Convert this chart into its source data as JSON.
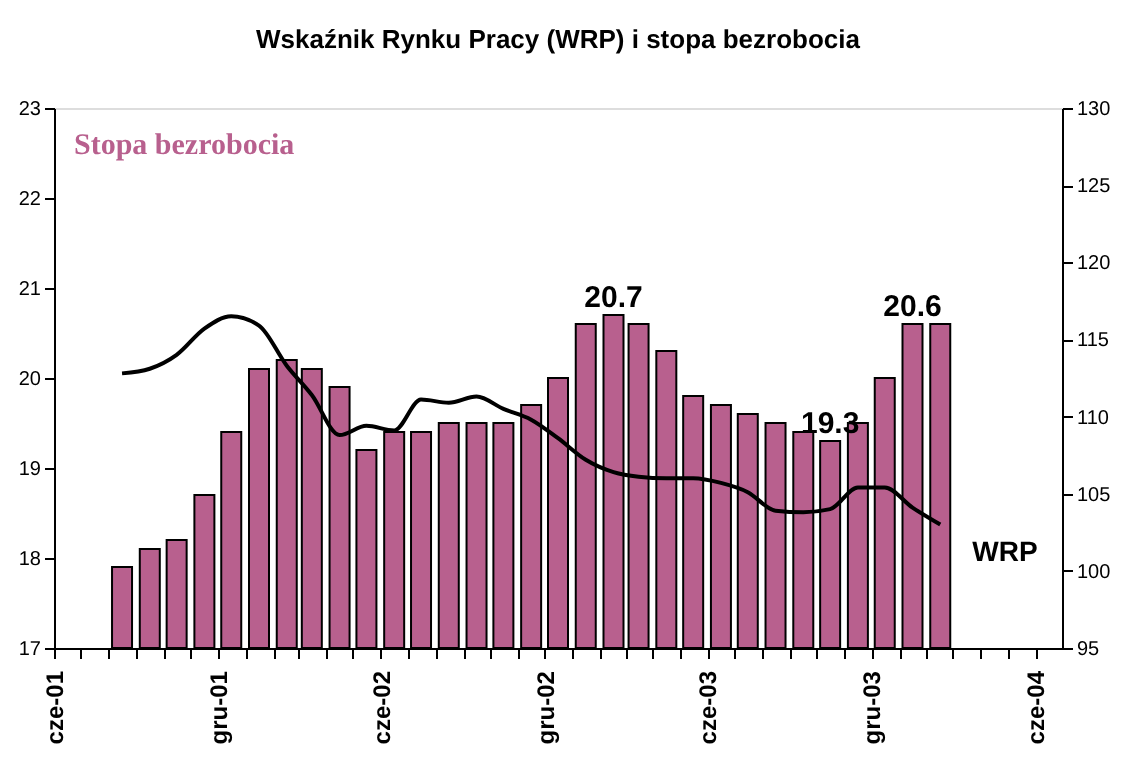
{
  "chart_data": {
    "type": "bar",
    "title": "Wskaźnik Rynku Pracy (WRP) i stopa bezrobocia",
    "x": [
      "2001-08-16",
      "2001-09-16",
      "2001-10-16",
      "2001-11-16",
      "2001-12-16",
      "2002-01-16",
      "2002-02-16",
      "2002-03-16",
      "2002-04-16",
      "2002-05-16",
      "2002-06-16",
      "2002-07-16",
      "2002-08-16",
      "2002-09-16",
      "2002-10-16",
      "2002-11-16",
      "2002-12-16",
      "2003-01-16",
      "2003-02-16",
      "2003-03-16",
      "2003-04-16",
      "2003-05-16",
      "2003-06-16",
      "2003-07-16",
      "2003-08-16",
      "2003-09-16",
      "2003-10-16",
      "2003-11-16",
      "2003-12-16",
      "2004-01-16",
      "2004-02-16"
    ],
    "series": [
      {
        "name": "Stopa bezrobocia",
        "color": "#b8608e",
        "values": [
          17.9,
          18.1,
          18.2,
          18.7,
          19.4,
          20.1,
          20.2,
          20.1,
          19.9,
          19.2,
          19.4,
          19.4,
          19.5,
          19.5,
          19.5,
          19.7,
          20.0,
          20.6,
          20.7,
          20.6,
          20.3,
          19.8,
          19.7,
          19.6,
          19.5,
          19.4,
          19.3,
          19.5,
          20.0,
          20.6,
          20.6
        ],
        "value_labels": [
          null,
          null,
          null,
          null,
          null,
          null,
          null,
          null,
          null,
          null,
          null,
          null,
          null,
          null,
          null,
          null,
          null,
          null,
          "20.7",
          null,
          null,
          null,
          null,
          null,
          null,
          null,
          "19.3",
          null,
          null,
          "20.6",
          null
        ]
      },
      {
        "name": "WRP",
        "type": "line",
        "axis": "y2",
        "color": "#000000",
        "values": [
          112.8,
          113.1,
          114.0,
          115.7,
          116.5,
          115.9,
          113.3,
          111.4,
          108.8,
          109.4,
          109.1,
          111.1,
          110.9,
          111.3,
          110.5,
          109.8,
          108.6,
          107.2,
          106.4,
          106.1,
          106.0,
          106.0,
          105.7,
          105.1,
          103.9,
          103.8,
          104.0,
          105.4,
          105.4,
          104.1,
          103.0
        ]
      }
    ],
    "xlim": [
      "2001-06",
      "2004-07"
    ],
    "xticks": [
      {
        "value": "2001-06",
        "label": "cze-01"
      },
      {
        "value": "2001-07",
        "label": null
      },
      {
        "value": "2001-08",
        "label": null
      },
      {
        "value": "2001-09",
        "label": null
      },
      {
        "value": "2001-10",
        "label": null
      },
      {
        "value": "2001-11",
        "label": null
      },
      {
        "value": "2001-12",
        "label": "gru-01"
      },
      {
        "value": "2002-01",
        "label": null
      },
      {
        "value": "2002-02",
        "label": null
      },
      {
        "value": "2002-03",
        "label": null
      },
      {
        "value": "2002-04",
        "label": null
      },
      {
        "value": "2002-05",
        "label": null
      },
      {
        "value": "2002-06",
        "label": "cze-02"
      },
      {
        "value": "2002-07",
        "label": null
      },
      {
        "value": "2002-08",
        "label": null
      },
      {
        "value": "2002-09",
        "label": null
      },
      {
        "value": "2002-10",
        "label": null
      },
      {
        "value": "2002-11",
        "label": null
      },
      {
        "value": "2002-12",
        "label": "gru-02"
      },
      {
        "value": "2003-01",
        "label": null
      },
      {
        "value": "2003-02",
        "label": null
      },
      {
        "value": "2003-03",
        "label": null
      },
      {
        "value": "2003-04",
        "label": null
      },
      {
        "value": "2003-05",
        "label": null
      },
      {
        "value": "2003-06",
        "label": "cze-03"
      },
      {
        "value": "2003-07",
        "label": null
      },
      {
        "value": "2003-08",
        "label": null
      },
      {
        "value": "2003-09",
        "label": null
      },
      {
        "value": "2003-10",
        "label": null
      },
      {
        "value": "2003-11",
        "label": null
      },
      {
        "value": "2003-12",
        "label": "gru-03"
      },
      {
        "value": "2004-01",
        "label": null
      },
      {
        "value": "2004-02",
        "label": null
      },
      {
        "value": "2004-03",
        "label": null
      },
      {
        "value": "2004-04",
        "label": null
      },
      {
        "value": "2004-05",
        "label": null
      },
      {
        "value": "2004-06",
        "label": "cze-04"
      }
    ],
    "ylim": [
      17,
      23
    ],
    "yticks": [
      17,
      18,
      19,
      20,
      21,
      22,
      23
    ],
    "y2lim": [
      95,
      130
    ],
    "y2ticks": [
      95,
      100,
      105,
      110,
      115,
      120,
      125,
      130
    ],
    "grid": false,
    "legend": false
  }
}
